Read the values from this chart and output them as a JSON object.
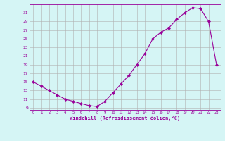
{
  "x": [
    0,
    1,
    2,
    3,
    4,
    5,
    6,
    7,
    8,
    9,
    10,
    11,
    12,
    13,
    14,
    15,
    16,
    17,
    18,
    19,
    20,
    21,
    22,
    23
  ],
  "y": [
    15,
    14,
    13,
    12,
    11,
    10.5,
    10,
    9.5,
    9.3,
    10.5,
    12.5,
    14.5,
    16.5,
    19,
    21.5,
    25,
    26.5,
    27.5,
    29.5,
    31,
    32.2,
    32,
    29,
    19
  ],
  "line_color": "#990099",
  "marker_color": "#990099",
  "bg_color": "#d5f5f5",
  "grid_color": "#b0b0b0",
  "xlabel": "Windchill (Refroidissement éolien,°C)",
  "ylabel_ticks": [
    9,
    11,
    13,
    15,
    17,
    19,
    21,
    23,
    25,
    27,
    29,
    31
  ],
  "xlim": [
    -0.5,
    23.5
  ],
  "ylim": [
    8.5,
    33.0
  ],
  "xticks": [
    0,
    1,
    2,
    3,
    4,
    5,
    6,
    7,
    8,
    9,
    10,
    11,
    12,
    13,
    14,
    15,
    16,
    17,
    18,
    19,
    20,
    21,
    22,
    23
  ]
}
